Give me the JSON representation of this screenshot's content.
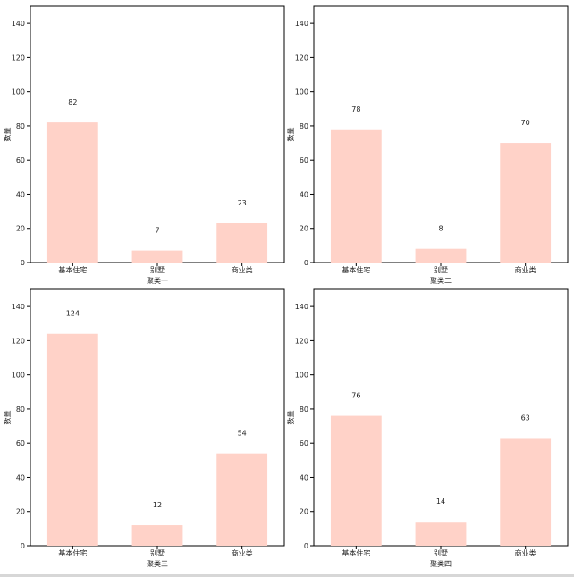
{
  "chart_data": [
    {
      "type": "bar",
      "categories": [
        "基本住宅",
        "别墅",
        "商业类"
      ],
      "values": [
        82,
        7,
        23
      ],
      "xlabel": "聚类一",
      "ylabel": "数量",
      "ylim": [
        0,
        150
      ],
      "yticks": [
        0,
        20,
        40,
        60,
        80,
        100,
        120,
        140
      ],
      "bar_color": "#ffd2c8",
      "show_value_labels": true
    },
    {
      "type": "bar",
      "categories": [
        "基本住宅",
        "别墅",
        "商业类"
      ],
      "values": [
        78,
        8,
        70
      ],
      "xlabel": "聚类二",
      "ylabel": "数量",
      "ylim": [
        0,
        150
      ],
      "yticks": [
        0,
        20,
        40,
        60,
        80,
        100,
        120,
        140
      ],
      "bar_color": "#ffd2c8",
      "show_value_labels": true
    },
    {
      "type": "bar",
      "categories": [
        "基本住宅",
        "别墅",
        "商业类"
      ],
      "values": [
        124,
        12,
        54
      ],
      "xlabel": "聚类三",
      "ylabel": "数量",
      "ylim": [
        0,
        150
      ],
      "yticks": [
        0,
        20,
        40,
        60,
        80,
        100,
        120,
        140
      ],
      "bar_color": "#ffd2c8",
      "show_value_labels": true
    },
    {
      "type": "bar",
      "categories": [
        "基本住宅",
        "别墅",
        "商业类"
      ],
      "values": [
        76,
        14,
        63
      ],
      "xlabel": "聚类四",
      "ylabel": "数量",
      "ylim": [
        0,
        150
      ],
      "yticks": [
        0,
        20,
        40,
        60,
        80,
        100,
        120,
        140
      ],
      "bar_color": "#ffd2c8",
      "show_value_labels": true
    }
  ]
}
